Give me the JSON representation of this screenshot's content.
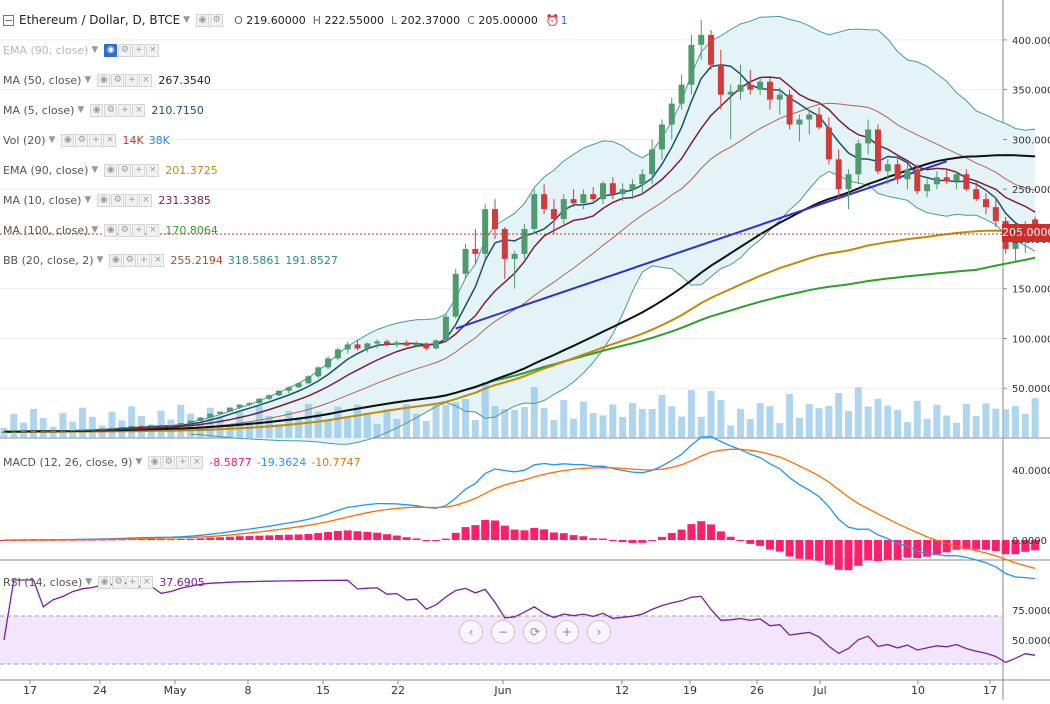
{
  "header": {
    "symbol_title": "Ethereum / Dollar, D, BTCE",
    "ohlc": {
      "o_label": "O",
      "o": "219.60000",
      "h_label": "H",
      "h": "222.55000",
      "l_label": "L",
      "l": "202.37000",
      "c_label": "C",
      "c": "205.00000"
    },
    "alert_badge": "1"
  },
  "legend": [
    {
      "name": "EMA (90, close)",
      "values": [],
      "faded": true
    },
    {
      "name": "MA (50, close)",
      "values": [
        {
          "v": "267.3540",
          "color": "#222222"
        }
      ]
    },
    {
      "name": "MA (5, close)",
      "values": [
        {
          "v": "210.7150",
          "color": "#1d4f6e"
        }
      ]
    },
    {
      "name": "Vol (20)",
      "values": [
        {
          "v": "14K",
          "color": "#c0392b"
        },
        {
          "v": "38K",
          "color": "#2e86de"
        }
      ]
    },
    {
      "name": "EMA (90, close)",
      "values": [
        {
          "v": "201.3725",
          "color": "#c38a08"
        }
      ]
    },
    {
      "name": "MA (10, close)",
      "values": [
        {
          "v": "231.3385",
          "color": "#7a1f3d"
        }
      ]
    },
    {
      "name": "MA (100, close)",
      "values": [
        {
          "v": "170.8064",
          "color": "#2e9e2e"
        }
      ]
    },
    {
      "name": "BB (20, close, 2)",
      "values": [
        {
          "v": "255.2194",
          "color": "#a0522d"
        },
        {
          "v": "318.5861",
          "color": "#2a8c8c"
        },
        {
          "v": "191.8527",
          "color": "#2a8c8c"
        }
      ]
    }
  ],
  "macd_label": {
    "name": "MACD (12, 26, close, 9)",
    "values": [
      {
        "v": "-8.5877",
        "color": "#e91e63"
      },
      {
        "v": "-19.3624",
        "color": "#2196f3"
      },
      {
        "v": "-10.7747",
        "color": "#ff6d00"
      }
    ]
  },
  "rsi_label": {
    "name": "RSI (14, close)",
    "values": [
      {
        "v": "37.6905",
        "color": "#7b1fa2"
      }
    ]
  },
  "last_price_tag": "205.0000",
  "nav_icons": [
    "chevron-left-icon",
    "minus-icon",
    "reset-icon",
    "plus-icon",
    "chevron-right-icon"
  ],
  "nav_glyphs": [
    "‹",
    "−",
    "⟳",
    "+",
    "›"
  ],
  "colors": {
    "up": "#4f9a6e",
    "down": "#d23b3b",
    "grid": "#e9ecf0",
    "rsi_band": "#f1e6fb",
    "bb_fill": "#e4f3f5"
  },
  "chart_data": {
    "type": "candlestick",
    "x_tick_labels": [
      "17",
      "24",
      "May",
      "8",
      "15",
      "22",
      "Jun",
      "12",
      "19",
      "26",
      "Jul",
      "10",
      "17"
    ],
    "price_axis": {
      "ticks": [
        "400.0000",
        "350.0000",
        "300.0000",
        "250.0000",
        "200.0000",
        "150.0000",
        "100.0000",
        "50.00000"
      ],
      "range": [
        0,
        420
      ]
    },
    "macd_axis": {
      "ticks": [
        "40.0000",
        "0.0000"
      ],
      "range": [
        -25,
        65
      ]
    },
    "rsi_axis": {
      "ticks": [
        "75.0000",
        "50.0000"
      ],
      "range": [
        20,
        100
      ],
      "bands": [
        70,
        30
      ]
    },
    "candles": [
      [
        6,
        6.5,
        6,
        6.3
      ],
      [
        6.3,
        6.6,
        6.1,
        6.4
      ],
      [
        6.4,
        7,
        6.3,
        6.9
      ],
      [
        6.9,
        7.3,
        6.7,
        7.1
      ],
      [
        7.1,
        7.2,
        6.8,
        6.9
      ],
      [
        6.9,
        7.3,
        6.9,
        7.2
      ],
      [
        7.2,
        7.5,
        7.1,
        7.4
      ],
      [
        7.4,
        8,
        7.3,
        7.9
      ],
      [
        7.9,
        8.5,
        7.8,
        8.4
      ],
      [
        8.4,
        8.9,
        8.2,
        8.7
      ],
      [
        8.7,
        9.8,
        8.6,
        9.6
      ],
      [
        9.6,
        10.5,
        9.2,
        10.1
      ],
      [
        10.1,
        11.2,
        9.9,
        10.9
      ],
      [
        10.9,
        12.3,
        10.5,
        12
      ],
      [
        12,
        12.8,
        11.4,
        11.8
      ],
      [
        11.8,
        13,
        11.6,
        12.7
      ],
      [
        12.7,
        13.3,
        12.1,
        12.4
      ],
      [
        12.4,
        13.2,
        12.2,
        13.1
      ],
      [
        13.1,
        15.1,
        13,
        15
      ],
      [
        15,
        17.8,
        14.6,
        17.3
      ],
      [
        17.3,
        21,
        17,
        20.6
      ],
      [
        20.6,
        24.8,
        20.2,
        24.3
      ],
      [
        24.3,
        27,
        23.9,
        26.4
      ],
      [
        26.4,
        31.1,
        26,
        30.5
      ],
      [
        30.5,
        34,
        29,
        33.5
      ],
      [
        33.5,
        36,
        32,
        35
      ],
      [
        35,
        40,
        34.5,
        39.5
      ],
      [
        39.5,
        44,
        38,
        43
      ],
      [
        43,
        48,
        42,
        47.5
      ],
      [
        47.5,
        52,
        45,
        51
      ],
      [
        51,
        56,
        50,
        55
      ],
      [
        55,
        63,
        54,
        62
      ],
      [
        62,
        72,
        60,
        71
      ],
      [
        71,
        82,
        69,
        80
      ],
      [
        80,
        91,
        78,
        89
      ],
      [
        89,
        97,
        85,
        94
      ],
      [
        94,
        98,
        88,
        90
      ],
      [
        90,
        96,
        86,
        95
      ],
      [
        95,
        99,
        90,
        97
      ],
      [
        97,
        99,
        92,
        94
      ],
      [
        94,
        98,
        91,
        96
      ],
      [
        96,
        98,
        92,
        93
      ],
      [
        93,
        97,
        91,
        95
      ],
      [
        95,
        96,
        88,
        90
      ],
      [
        90,
        99,
        89,
        98
      ],
      [
        98,
        125,
        96,
        122
      ],
      [
        122,
        170,
        120,
        165
      ],
      [
        165,
        195,
        160,
        190
      ],
      [
        190,
        210,
        175,
        185
      ],
      [
        185,
        235,
        180,
        230
      ],
      [
        230,
        240,
        200,
        210
      ],
      [
        210,
        212,
        160,
        180
      ],
      [
        180,
        188,
        150,
        185
      ],
      [
        185,
        215,
        180,
        210
      ],
      [
        210,
        250,
        205,
        245
      ],
      [
        245,
        255,
        225,
        230
      ],
      [
        230,
        240,
        205,
        220
      ],
      [
        220,
        245,
        215,
        240
      ],
      [
        240,
        250,
        232,
        236
      ],
      [
        236,
        250,
        230,
        245
      ],
      [
        245,
        252,
        238,
        240
      ],
      [
        240,
        258,
        235,
        256
      ],
      [
        256,
        262,
        240,
        245
      ],
      [
        245,
        256,
        238,
        250
      ],
      [
        250,
        260,
        240,
        255
      ],
      [
        255,
        270,
        245,
        265
      ],
      [
        265,
        300,
        255,
        290
      ],
      [
        290,
        320,
        280,
        315
      ],
      [
        315,
        342,
        300,
        336
      ],
      [
        336,
        365,
        330,
        355
      ],
      [
        355,
        405,
        345,
        395
      ],
      [
        395,
        420,
        380,
        405
      ],
      [
        405,
        410,
        370,
        375
      ],
      [
        375,
        390,
        330,
        345
      ],
      [
        345,
        355,
        300,
        348
      ],
      [
        348,
        375,
        340,
        355
      ],
      [
        355,
        370,
        345,
        350
      ],
      [
        350,
        362,
        345,
        358
      ],
      [
        358,
        362,
        330,
        340
      ],
      [
        340,
        352,
        325,
        345
      ],
      [
        345,
        350,
        310,
        315
      ],
      [
        315,
        325,
        298,
        320
      ],
      [
        320,
        330,
        305,
        325
      ],
      [
        325,
        332,
        310,
        312
      ],
      [
        312,
        322,
        275,
        280
      ],
      [
        280,
        290,
        240,
        250
      ],
      [
        250,
        270,
        230,
        265
      ],
      [
        265,
        300,
        255,
        296
      ],
      [
        296,
        320,
        285,
        310
      ],
      [
        310,
        315,
        265,
        268
      ],
      [
        268,
        280,
        255,
        275
      ],
      [
        275,
        285,
        255,
        260
      ],
      [
        260,
        275,
        250,
        270
      ],
      [
        270,
        275,
        245,
        248
      ],
      [
        248,
        260,
        242,
        255
      ],
      [
        255,
        268,
        250,
        262
      ],
      [
        262,
        270,
        255,
        258
      ],
      [
        258,
        268,
        250,
        265
      ],
      [
        265,
        270,
        248,
        250
      ],
      [
        250,
        258,
        238,
        240
      ],
      [
        240,
        246,
        225,
        232
      ],
      [
        232,
        240,
        212,
        218
      ],
      [
        218,
        222,
        185,
        190
      ],
      [
        190,
        215,
        178,
        200
      ],
      [
        200,
        218,
        186,
        212
      ],
      [
        219.6,
        222.55,
        202.37,
        205
      ]
    ]
  }
}
